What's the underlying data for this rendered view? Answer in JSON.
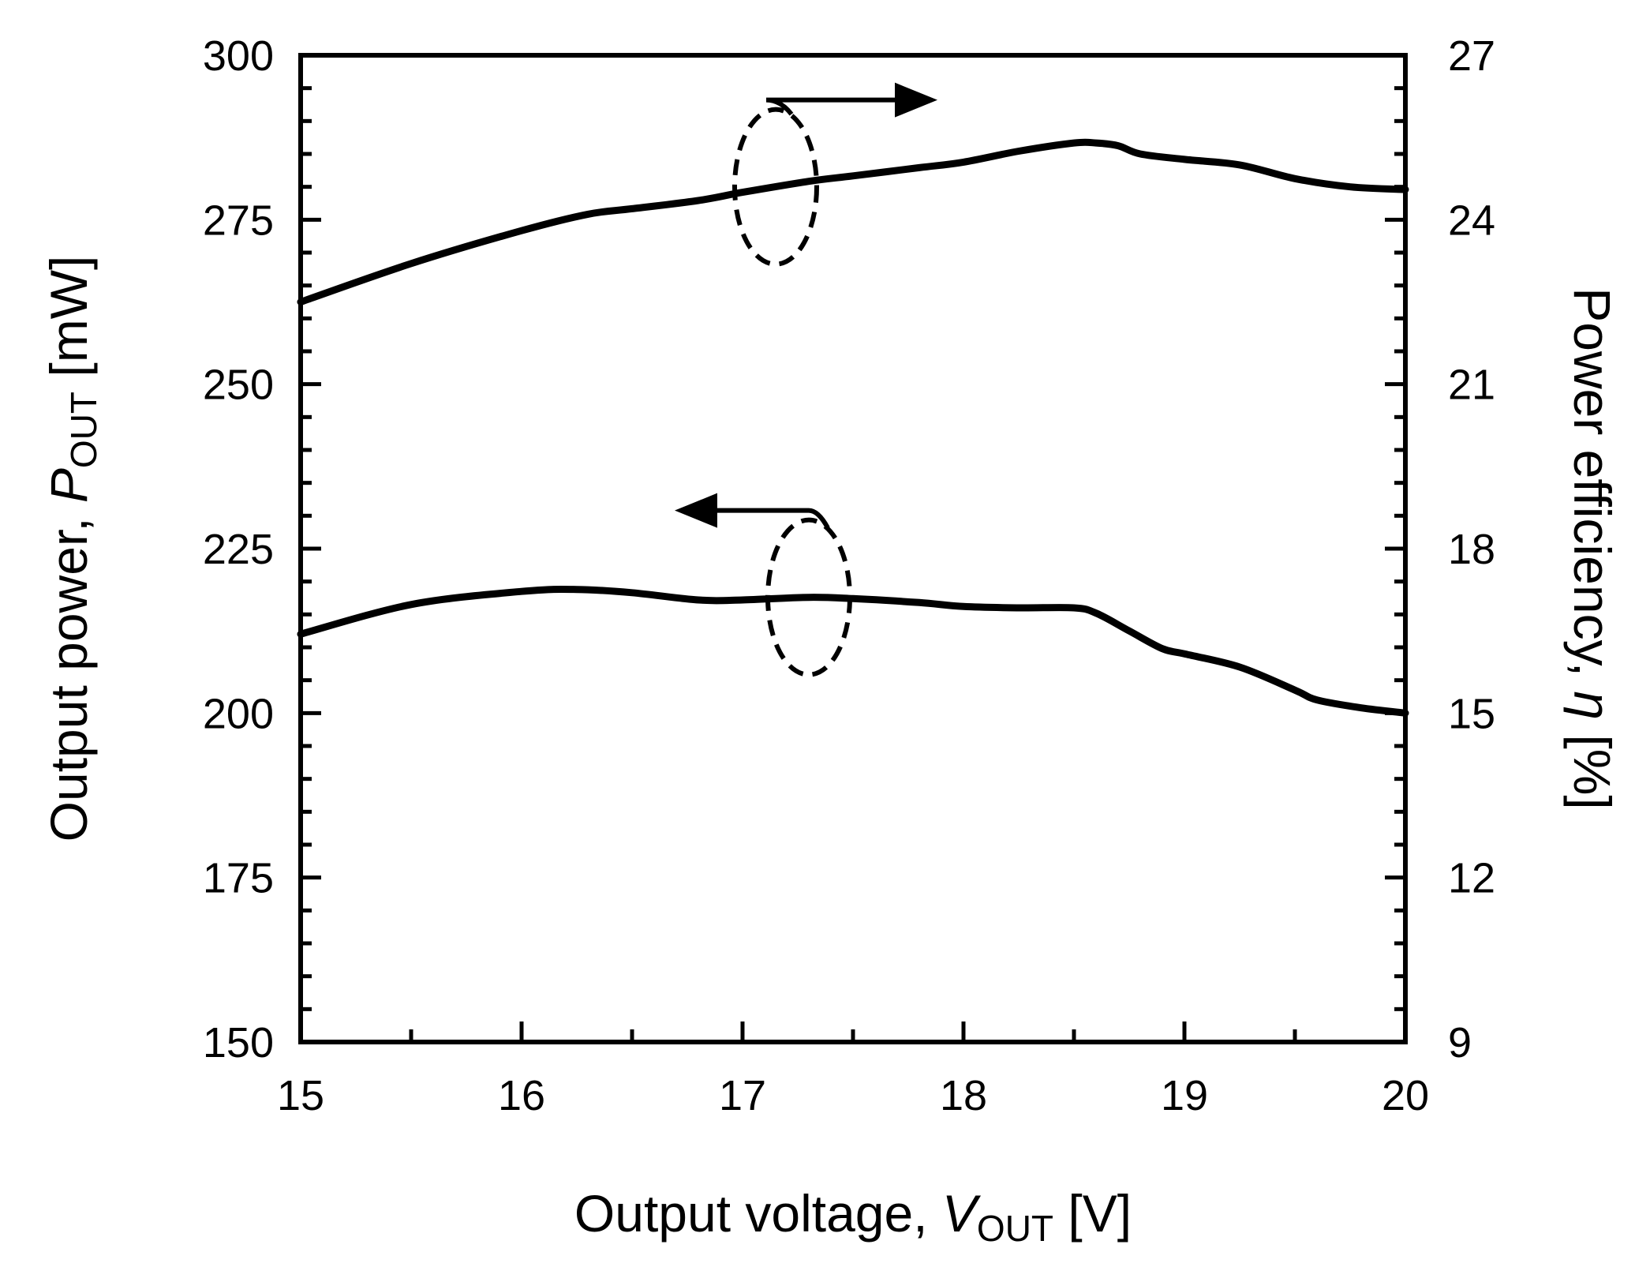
{
  "chart_data": {
    "type": "line",
    "xlabel": {
      "prefix": "Output voltage, ",
      "symbol": "V",
      "subscript": "OUT",
      "suffix": " [V]"
    },
    "ylabel_left": {
      "prefix": "Output power, ",
      "symbol": "P",
      "subscript": "OUT",
      "suffix": " [mW]"
    },
    "ylabel_right": {
      "prefix": "Power efficiency, ",
      "symbol": "η",
      "suffix": " [%]"
    },
    "xlim": [
      15,
      20
    ],
    "ylim_left": [
      150,
      300
    ],
    "ylim_right": [
      9,
      27
    ],
    "x_ticks": [
      "15",
      "16",
      "17",
      "18",
      "19",
      "20"
    ],
    "y_left_ticks": [
      "150",
      "175",
      "200",
      "225",
      "250",
      "275",
      "300"
    ],
    "y_right_ticks": [
      "9",
      "12",
      "15",
      "18",
      "21",
      "24",
      "27"
    ],
    "grid": false,
    "series": [
      {
        "axis": "left",
        "annotation_arrow": "left",
        "x": [
          15.0,
          15.5,
          16.0,
          16.25,
          16.5,
          16.8,
          17.0,
          17.3,
          17.5,
          17.8,
          18.0,
          18.25,
          18.5,
          18.6,
          18.75,
          18.9,
          19.0,
          19.25,
          19.5,
          19.6,
          19.8,
          20.0
        ],
        "values": [
          212,
          216.5,
          218.5,
          218.8,
          218.3,
          217.2,
          217.2,
          217.6,
          217.4,
          216.8,
          216.2,
          216.0,
          216.0,
          215.2,
          212.5,
          209.8,
          209.0,
          207.0,
          203.5,
          202.0,
          200.8,
          200.0
        ]
      },
      {
        "axis": "right",
        "annotation_arrow": "right",
        "x": [
          15.0,
          15.5,
          16.0,
          16.3,
          16.5,
          16.8,
          17.0,
          17.3,
          17.5,
          17.8,
          18.0,
          18.25,
          18.5,
          18.6,
          18.7,
          18.8,
          19.0,
          19.25,
          19.5,
          19.75,
          20.0
        ],
        "values": [
          22.5,
          23.2,
          23.8,
          24.1,
          24.2,
          24.35,
          24.5,
          24.7,
          24.8,
          24.95,
          25.05,
          25.25,
          25.4,
          25.4,
          25.35,
          25.2,
          25.1,
          25.0,
          24.75,
          24.6,
          24.55
        ]
      }
    ]
  }
}
